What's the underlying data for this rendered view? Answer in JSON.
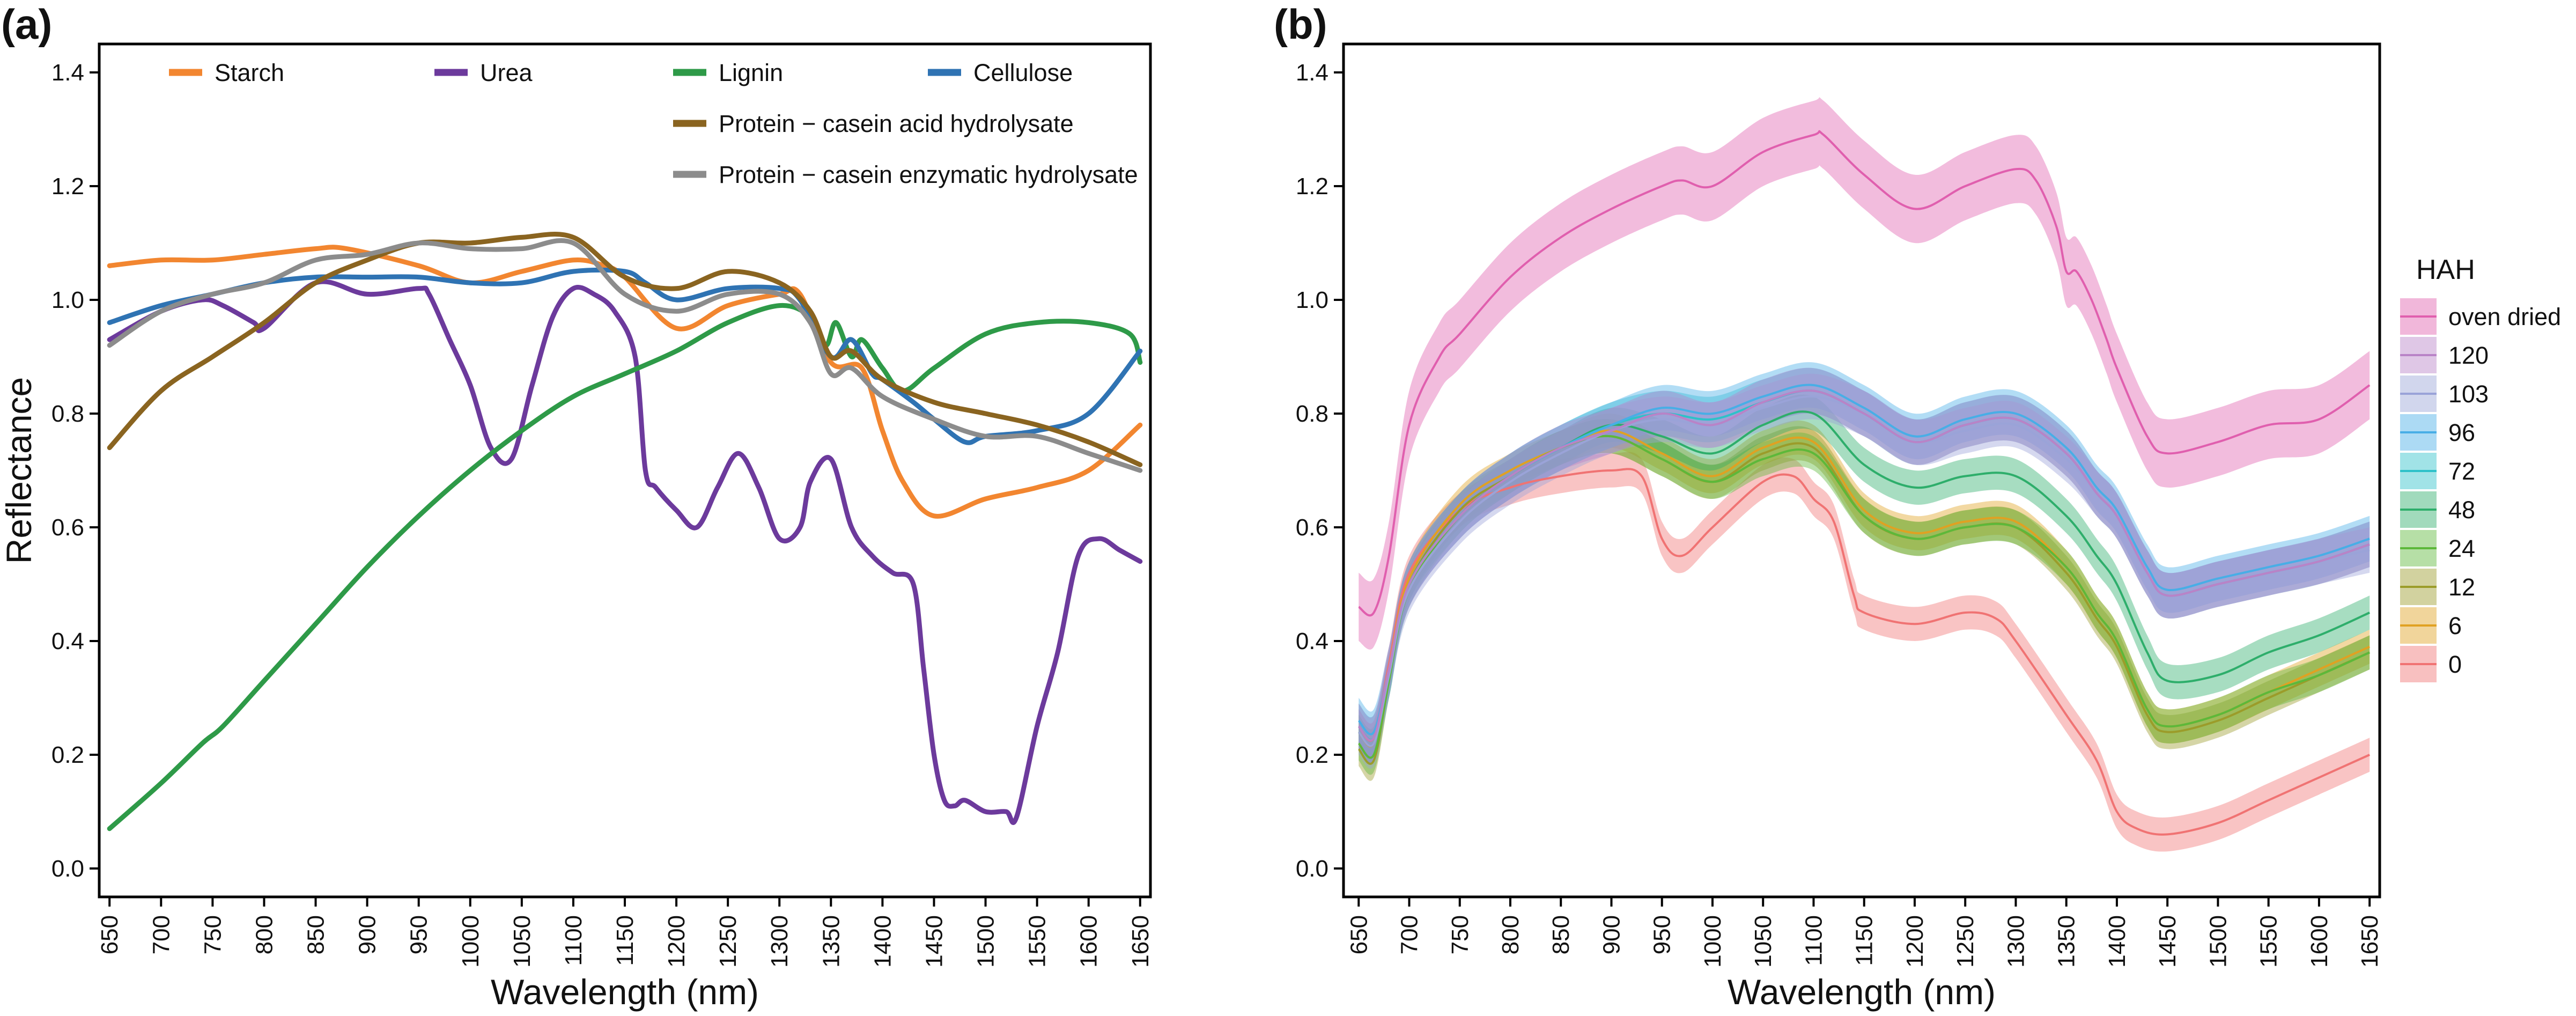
{
  "figure": {
    "panels": [
      "(a)",
      "(b)"
    ]
  },
  "chart_data": [
    {
      "type": "line",
      "panel": "(a)",
      "title": "",
      "xlabel": "Wavelength (nm)",
      "ylabel": "Reflectance",
      "xlim": [
        640,
        1660
      ],
      "ylim": [
        -0.05,
        1.45
      ],
      "xticks": [
        650,
        700,
        750,
        800,
        850,
        900,
        950,
        1000,
        1050,
        1100,
        1150,
        1200,
        1250,
        1300,
        1350,
        1400,
        1450,
        1500,
        1550,
        1600,
        1650
      ],
      "yticks": [
        "0.0",
        "0.2",
        "0.4",
        "0.6",
        "0.8",
        "1.0",
        "1.2",
        "1.4"
      ],
      "legend": [
        "Starch",
        "Urea",
        "Lignin",
        "Cellulose",
        "Protein − casein acid hydrolysate",
        "Protein − casein enzymatic hydrolysate"
      ],
      "series": [
        {
          "name": "Starch",
          "color": "#F28630",
          "x": [
            650,
            700,
            750,
            800,
            850,
            880,
            950,
            1000,
            1050,
            1100,
            1130,
            1150,
            1200,
            1250,
            1300,
            1320,
            1350,
            1380,
            1400,
            1420,
            1450,
            1500,
            1550,
            1600,
            1650
          ],
          "y": [
            1.06,
            1.07,
            1.07,
            1.08,
            1.09,
            1.09,
            1.06,
            1.03,
            1.05,
            1.07,
            1.06,
            1.04,
            0.95,
            0.99,
            1.01,
            1.01,
            0.89,
            0.88,
            0.77,
            0.68,
            0.62,
            0.65,
            0.67,
            0.7,
            0.78
          ]
        },
        {
          "name": "Urea",
          "color": "#6C3A9C",
          "x": [
            650,
            700,
            740,
            760,
            790,
            800,
            850,
            900,
            950,
            960,
            980,
            1000,
            1020,
            1040,
            1060,
            1080,
            1100,
            1120,
            1140,
            1160,
            1170,
            1180,
            1200,
            1220,
            1240,
            1260,
            1280,
            1300,
            1320,
            1330,
            1350,
            1370,
            1390,
            1410,
            1430,
            1440,
            1450,
            1460,
            1470,
            1480,
            1500,
            1520,
            1530,
            1550,
            1570,
            1590,
            1610,
            1630,
            1650
          ],
          "y": [
            0.93,
            0.98,
            1.0,
            0.99,
            0.96,
            0.95,
            1.03,
            1.01,
            1.02,
            1.01,
            0.93,
            0.85,
            0.74,
            0.72,
            0.85,
            0.97,
            1.02,
            1.01,
            0.98,
            0.9,
            0.7,
            0.67,
            0.63,
            0.6,
            0.67,
            0.73,
            0.67,
            0.58,
            0.6,
            0.68,
            0.72,
            0.6,
            0.55,
            0.52,
            0.5,
            0.35,
            0.2,
            0.12,
            0.11,
            0.12,
            0.1,
            0.1,
            0.09,
            0.25,
            0.38,
            0.55,
            0.58,
            0.56,
            0.54
          ]
        },
        {
          "name": "Lignin",
          "color": "#2E9A48",
          "x": [
            650,
            700,
            740,
            760,
            800,
            850,
            900,
            950,
            1000,
            1050,
            1100,
            1150,
            1200,
            1250,
            1300,
            1330,
            1345,
            1355,
            1370,
            1380,
            1400,
            1420,
            1450,
            1500,
            1550,
            1600,
            1640,
            1650
          ],
          "y": [
            0.07,
            0.15,
            0.22,
            0.25,
            0.33,
            0.43,
            0.53,
            0.62,
            0.7,
            0.77,
            0.83,
            0.87,
            0.91,
            0.96,
            0.99,
            0.97,
            0.92,
            0.96,
            0.9,
            0.93,
            0.88,
            0.84,
            0.88,
            0.94,
            0.96,
            0.96,
            0.94,
            0.89
          ]
        },
        {
          "name": "Cellulose",
          "color": "#2F73B3",
          "x": [
            650,
            700,
            750,
            800,
            850,
            900,
            950,
            1000,
            1050,
            1100,
            1150,
            1170,
            1200,
            1250,
            1300,
            1320,
            1350,
            1370,
            1390,
            1400,
            1430,
            1450,
            1480,
            1500,
            1550,
            1600,
            1650
          ],
          "y": [
            0.96,
            0.99,
            1.01,
            1.03,
            1.04,
            1.04,
            1.04,
            1.03,
            1.03,
            1.05,
            1.05,
            1.03,
            1.0,
            1.02,
            1.02,
            1.0,
            0.9,
            0.93,
            0.87,
            0.86,
            0.82,
            0.79,
            0.75,
            0.76,
            0.77,
            0.8,
            0.91
          ]
        },
        {
          "name": "Protein − casein acid hydrolysate",
          "color": "#8A6420",
          "x": [
            650,
            700,
            750,
            800,
            850,
            900,
            950,
            1000,
            1050,
            1100,
            1150,
            1200,
            1250,
            1300,
            1330,
            1350,
            1370,
            1400,
            1450,
            1500,
            1550,
            1600,
            1650
          ],
          "y": [
            0.74,
            0.84,
            0.9,
            0.96,
            1.03,
            1.07,
            1.1,
            1.1,
            1.11,
            1.11,
            1.04,
            1.02,
            1.05,
            1.03,
            0.98,
            0.9,
            0.91,
            0.86,
            0.82,
            0.8,
            0.78,
            0.75,
            0.71
          ]
        },
        {
          "name": "Protein − casein enzymatic hydrolysate",
          "color": "#8C8C8C",
          "x": [
            650,
            700,
            750,
            800,
            850,
            900,
            950,
            1000,
            1050,
            1100,
            1150,
            1200,
            1250,
            1300,
            1330,
            1350,
            1370,
            1400,
            1450,
            1500,
            1550,
            1600,
            1650
          ],
          "y": [
            0.92,
            0.98,
            1.01,
            1.03,
            1.07,
            1.08,
            1.1,
            1.09,
            1.09,
            1.1,
            1.01,
            0.98,
            1.01,
            1.01,
            0.96,
            0.87,
            0.88,
            0.83,
            0.79,
            0.76,
            0.76,
            0.73,
            0.7
          ]
        }
      ]
    },
    {
      "type": "area",
      "panel": "(b)",
      "title": "",
      "xlabel": "Wavelength (nm)",
      "ylabel": "",
      "xlim": [
        635,
        1660
      ],
      "ylim": [
        -0.05,
        1.45
      ],
      "xticks": [
        650,
        700,
        750,
        800,
        850,
        900,
        950,
        1000,
        1050,
        1100,
        1150,
        1200,
        1250,
        1300,
        1350,
        1400,
        1450,
        1500,
        1550,
        1600,
        1650
      ],
      "yticks": [
        "0.0",
        "0.2",
        "0.4",
        "0.6",
        "0.8",
        "1.0",
        "1.2",
        "1.4"
      ],
      "legend_title": "HAH",
      "legend": [
        "oven dried",
        "120",
        "103",
        "96",
        "72",
        "48",
        "24",
        "12",
        "6",
        "0"
      ],
      "series": [
        {
          "name": "oven dried",
          "color": "#E05FAE",
          "band": 0.06,
          "x": [
            650,
            665,
            680,
            700,
            730,
            750,
            800,
            850,
            900,
            950,
            970,
            1000,
            1050,
            1100,
            1110,
            1150,
            1200,
            1250,
            1300,
            1320,
            1340,
            1350,
            1360,
            1375,
            1390,
            1400,
            1430,
            1450,
            1500,
            1550,
            1600,
            1650
          ],
          "y": [
            0.46,
            0.45,
            0.55,
            0.78,
            0.9,
            0.94,
            1.04,
            1.11,
            1.16,
            1.2,
            1.21,
            1.2,
            1.26,
            1.29,
            1.29,
            1.22,
            1.16,
            1.2,
            1.23,
            1.21,
            1.13,
            1.05,
            1.05,
            1.0,
            0.93,
            0.88,
            0.76,
            0.73,
            0.75,
            0.78,
            0.79,
            0.85
          ]
        },
        {
          "name": "120",
          "color": "#B983C7",
          "band": 0.04,
          "x": [
            650,
            665,
            680,
            700,
            750,
            800,
            850,
            900,
            950,
            1000,
            1050,
            1100,
            1150,
            1200,
            1250,
            1300,
            1350,
            1380,
            1400,
            1430,
            1450,
            1500,
            1550,
            1600,
            1650
          ],
          "y": [
            0.25,
            0.23,
            0.35,
            0.5,
            0.62,
            0.69,
            0.74,
            0.77,
            0.8,
            0.78,
            0.82,
            0.84,
            0.8,
            0.75,
            0.78,
            0.79,
            0.73,
            0.66,
            0.62,
            0.52,
            0.48,
            0.5,
            0.52,
            0.54,
            0.57
          ]
        },
        {
          "name": "103",
          "color": "#9AA3D8",
          "band": 0.04,
          "x": [
            650,
            665,
            680,
            700,
            750,
            800,
            850,
            900,
            950,
            1000,
            1050,
            1100,
            1150,
            1200,
            1250,
            1300,
            1350,
            1380,
            1400,
            1430,
            1450,
            1500,
            1550,
            1600,
            1650
          ],
          "y": [
            0.24,
            0.22,
            0.34,
            0.49,
            0.61,
            0.68,
            0.73,
            0.77,
            0.79,
            0.78,
            0.81,
            0.83,
            0.8,
            0.75,
            0.77,
            0.78,
            0.72,
            0.66,
            0.62,
            0.52,
            0.48,
            0.5,
            0.52,
            0.54,
            0.56
          ]
        },
        {
          "name": "96",
          "color": "#48AEE6",
          "band": 0.04,
          "x": [
            650,
            665,
            680,
            700,
            750,
            800,
            850,
            900,
            950,
            1000,
            1050,
            1100,
            1150,
            1200,
            1250,
            1300,
            1350,
            1380,
            1400,
            1430,
            1450,
            1500,
            1550,
            1600,
            1650
          ],
          "y": [
            0.26,
            0.24,
            0.35,
            0.5,
            0.62,
            0.69,
            0.74,
            0.78,
            0.81,
            0.8,
            0.83,
            0.85,
            0.81,
            0.76,
            0.79,
            0.8,
            0.74,
            0.67,
            0.63,
            0.53,
            0.49,
            0.51,
            0.53,
            0.55,
            0.58
          ]
        },
        {
          "name": "72",
          "color": "#2EC1C9",
          "band": 0.04,
          "x": [
            650,
            665,
            680,
            700,
            750,
            800,
            850,
            900,
            950,
            1000,
            1050,
            1100,
            1150,
            1200,
            1250,
            1300,
            1350,
            1380,
            1400,
            1430,
            1450,
            1500,
            1550,
            1600,
            1650
          ],
          "y": [
            0.25,
            0.23,
            0.34,
            0.5,
            0.62,
            0.69,
            0.74,
            0.78,
            0.8,
            0.79,
            0.82,
            0.84,
            0.8,
            0.75,
            0.78,
            0.79,
            0.73,
            0.66,
            0.62,
            0.52,
            0.48,
            0.5,
            0.52,
            0.54,
            0.57
          ]
        },
        {
          "name": "48",
          "color": "#2EAE6B",
          "band": 0.03,
          "x": [
            650,
            665,
            680,
            700,
            750,
            800,
            850,
            900,
            950,
            1000,
            1050,
            1100,
            1150,
            1200,
            1250,
            1300,
            1350,
            1380,
            1400,
            1430,
            1450,
            1500,
            1550,
            1600,
            1650
          ],
          "y": [
            0.24,
            0.22,
            0.34,
            0.5,
            0.62,
            0.69,
            0.74,
            0.78,
            0.76,
            0.73,
            0.78,
            0.8,
            0.71,
            0.67,
            0.69,
            0.69,
            0.62,
            0.55,
            0.5,
            0.38,
            0.33,
            0.34,
            0.38,
            0.41,
            0.45
          ]
        },
        {
          "name": "24",
          "color": "#5DB83A",
          "band": 0.03,
          "x": [
            650,
            665,
            680,
            700,
            750,
            800,
            850,
            900,
            950,
            1000,
            1050,
            1100,
            1150,
            1200,
            1250,
            1300,
            1350,
            1380,
            1400,
            1430,
            1450,
            1500,
            1550,
            1600,
            1650
          ],
          "y": [
            0.22,
            0.2,
            0.33,
            0.49,
            0.62,
            0.69,
            0.74,
            0.76,
            0.72,
            0.68,
            0.72,
            0.73,
            0.62,
            0.58,
            0.6,
            0.6,
            0.53,
            0.45,
            0.4,
            0.28,
            0.25,
            0.27,
            0.31,
            0.34,
            0.38
          ]
        },
        {
          "name": "12",
          "color": "#9B9C2A",
          "band": 0.03,
          "x": [
            650,
            665,
            680,
            700,
            750,
            800,
            850,
            900,
            950,
            1000,
            1050,
            1100,
            1150,
            1200,
            1250,
            1300,
            1350,
            1380,
            1400,
            1430,
            1450,
            1500,
            1550,
            1600,
            1650
          ],
          "y": [
            0.21,
            0.19,
            0.33,
            0.5,
            0.63,
            0.69,
            0.74,
            0.76,
            0.72,
            0.68,
            0.73,
            0.74,
            0.62,
            0.58,
            0.6,
            0.6,
            0.52,
            0.44,
            0.39,
            0.27,
            0.24,
            0.26,
            0.3,
            0.34,
            0.38
          ]
        },
        {
          "name": "6",
          "color": "#E0A122",
          "band": 0.03,
          "x": [
            650,
            665,
            680,
            700,
            750,
            800,
            850,
            900,
            950,
            1000,
            1050,
            1100,
            1150,
            1200,
            1250,
            1300,
            1350,
            1380,
            1400,
            1430,
            1450,
            1500,
            1550,
            1600,
            1650
          ],
          "y": [
            0.24,
            0.22,
            0.35,
            0.51,
            0.64,
            0.7,
            0.74,
            0.77,
            0.73,
            0.69,
            0.74,
            0.75,
            0.63,
            0.59,
            0.61,
            0.61,
            0.53,
            0.45,
            0.4,
            0.28,
            0.25,
            0.27,
            0.31,
            0.35,
            0.39
          ]
        },
        {
          "name": "0",
          "color": "#F07373",
          "band": 0.03,
          "x": [
            650,
            665,
            680,
            700,
            750,
            800,
            850,
            900,
            930,
            950,
            970,
            1000,
            1050,
            1080,
            1100,
            1120,
            1140,
            1150,
            1200,
            1250,
            1280,
            1300,
            1350,
            1380,
            1400,
            1420,
            1450,
            1500,
            1550,
            1600,
            1650
          ],
          "y": [
            0.25,
            0.23,
            0.36,
            0.52,
            0.63,
            0.67,
            0.69,
            0.7,
            0.69,
            0.58,
            0.55,
            0.6,
            0.68,
            0.69,
            0.65,
            0.61,
            0.48,
            0.45,
            0.43,
            0.45,
            0.44,
            0.4,
            0.27,
            0.19,
            0.1,
            0.07,
            0.06,
            0.08,
            0.12,
            0.16,
            0.2
          ]
        }
      ]
    }
  ]
}
